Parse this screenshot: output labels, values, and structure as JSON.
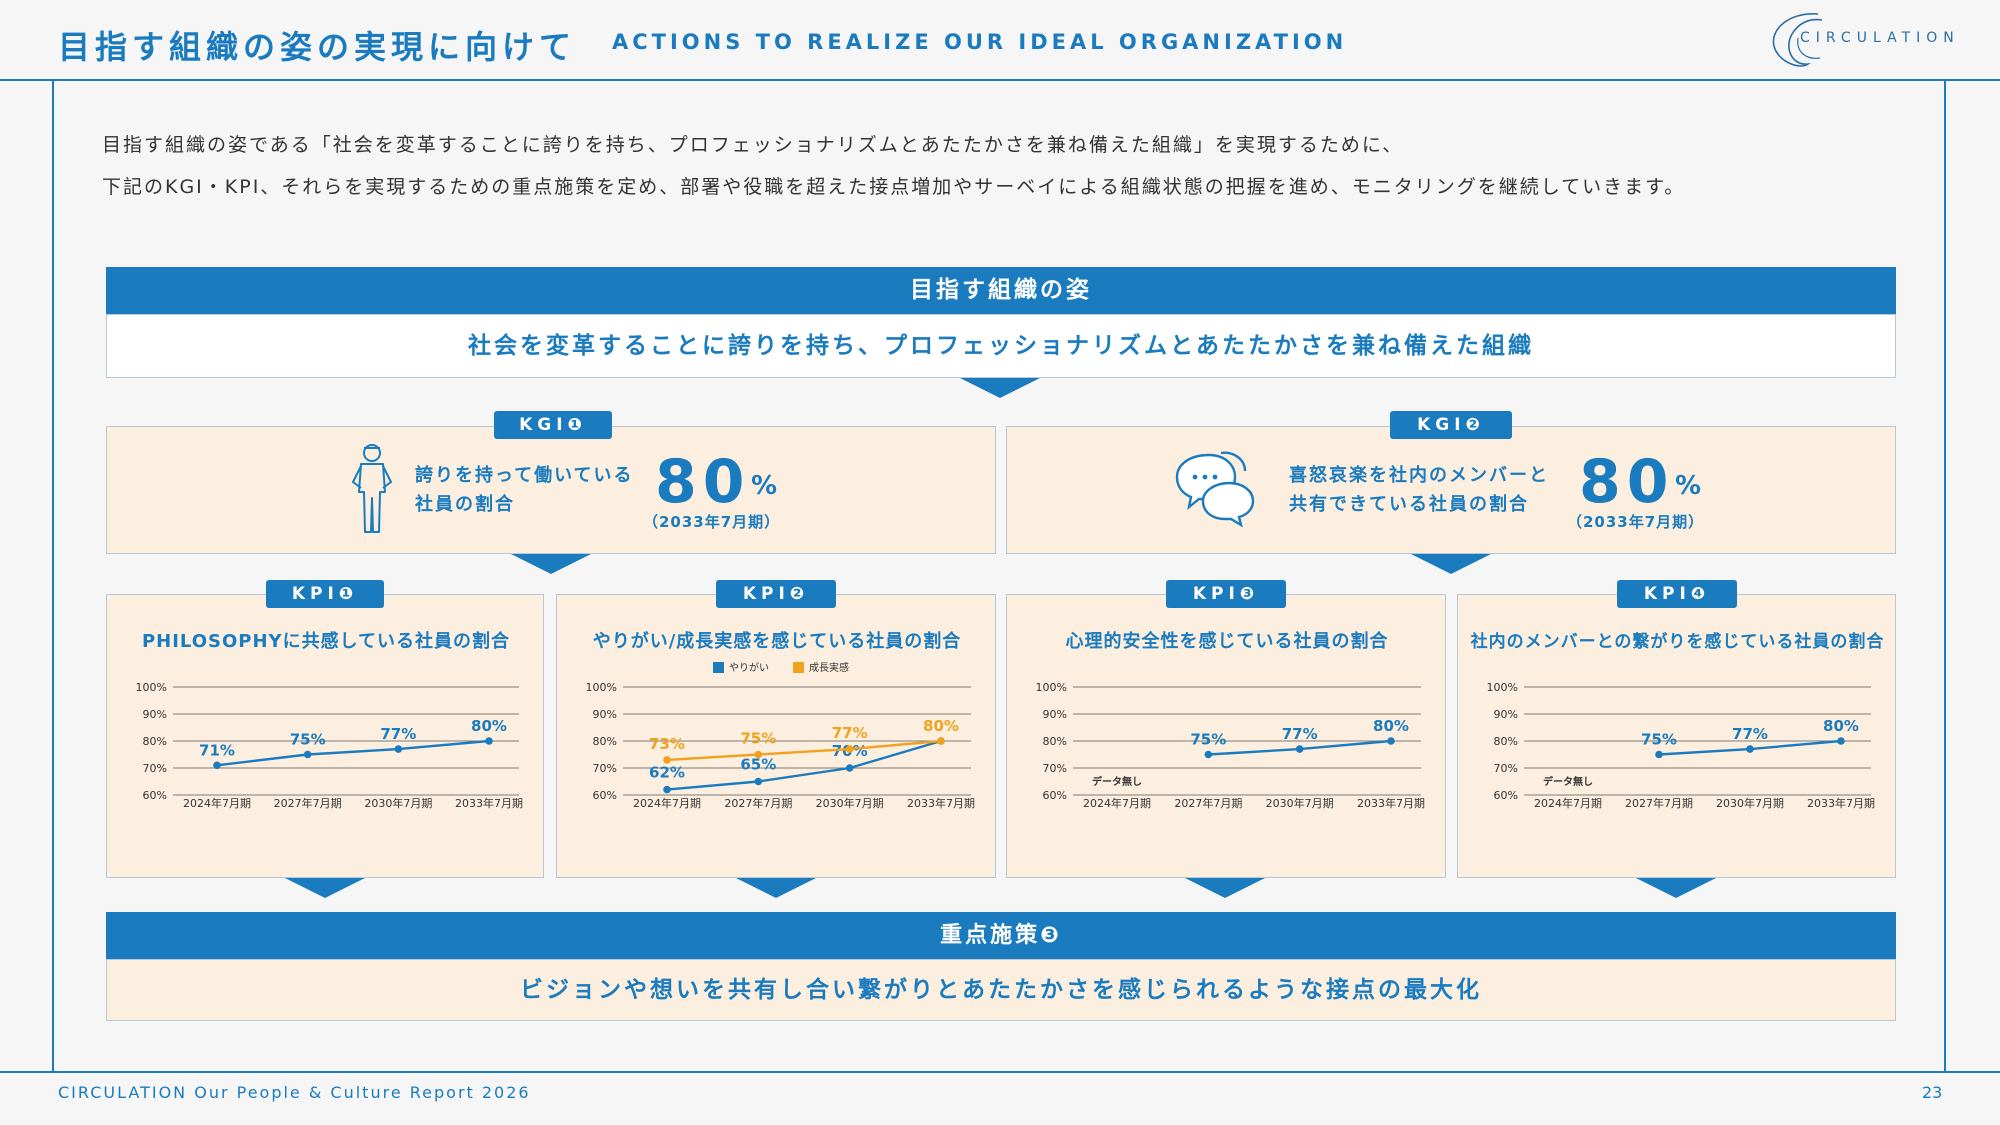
{
  "header": {
    "title_jp": "目指す組織の姿の実現に向けて",
    "title_en": "ACTIONS TO REALIZE OUR IDEAL ORGANIZATION",
    "logo_text": "CIRCULATION"
  },
  "intro": {
    "line1": "目指す組織の姿である「社会を変革することに誇りを持ち、プロフェッショナリズムとあたたかさを兼ね備えた組織」を実現するために、",
    "line2": "下記のKGI・KPI、それらを実現するための重点施策を定め、部署や役職を超えた接点増加やサーベイによる組織状態の把握を進め、モニタリングを継続していきます。"
  },
  "ideal": {
    "heading": "目指す組織の姿",
    "text": "社会を変革することに誇りを持ち、プロフェッショナリズムとあたたかさを兼ね備えた組織"
  },
  "kgis": [
    {
      "tag": "KGI❶",
      "line1": "誇りを持って働いている",
      "line2": "社員の割合",
      "value": "80",
      "unit": "%",
      "period": "（2033年7月期）",
      "icon": "person-icon"
    },
    {
      "tag": "KGI❷",
      "line1": "喜怒哀楽を社内のメンバーと",
      "line2": "共有できている社員の割合",
      "value": "80",
      "unit": "%",
      "period": "（2033年7月期）",
      "icon": "chat-bubbles-icon"
    }
  ],
  "kpis": [
    {
      "tag": "KPI❶",
      "title": "PHILOSOPHYに共感している社員の割合"
    },
    {
      "tag": "KPI❷",
      "title": "やりがい/成長実感を感じている社員の割合"
    },
    {
      "tag": "KPI❸",
      "title": "心理的安全性を感じている社員の割合"
    },
    {
      "tag": "KPI❹",
      "title": "社内のメンバーとの繋がりを感じている社員の割合"
    }
  ],
  "chart_data": [
    {
      "type": "line",
      "title": "PHILOSOPHYに共感している社員の割合",
      "categories": [
        "2024年7月期",
        "2027年7月期",
        "2030年7月期",
        "2033年7月期"
      ],
      "y_ticks": [
        "100%",
        "90%",
        "80%",
        "70%",
        "60%"
      ],
      "ylim": [
        60,
        100
      ],
      "series": [
        {
          "values": [
            71,
            75,
            77,
            80
          ],
          "labels": [
            "71%",
            "75%",
            "77%",
            "80%"
          ],
          "color": "#1a7bbf"
        }
      ],
      "note": ""
    },
    {
      "type": "line",
      "title": "やりがい/成長実感を感じている社員の割合",
      "categories": [
        "2024年7月期",
        "2027年7月期",
        "2030年7月期",
        "2033年7月期"
      ],
      "y_ticks": [
        "100%",
        "90%",
        "80%",
        "70%",
        "60%"
      ],
      "ylim": [
        60,
        100
      ],
      "legend_position": "top",
      "series": [
        {
          "name": "やりがい",
          "values": [
            62,
            65,
            70,
            80
          ],
          "labels": [
            "62%",
            "65%",
            "70%",
            "80%"
          ],
          "color": "#1a7bbf"
        },
        {
          "name": "成長実感",
          "values": [
            73,
            75,
            77,
            80
          ],
          "labels": [
            "73%",
            "75%",
            "77%",
            "80%"
          ],
          "color": "#f0a21e"
        }
      ],
      "note": ""
    },
    {
      "type": "line",
      "title": "心理的安全性を感じている社員の割合",
      "categories": [
        "2024年7月期",
        "2027年7月期",
        "2030年7月期",
        "2033年7月期"
      ],
      "y_ticks": [
        "100%",
        "90%",
        "80%",
        "70%",
        "60%"
      ],
      "ylim": [
        60,
        100
      ],
      "series": [
        {
          "values": [
            null,
            75,
            77,
            80
          ],
          "labels": [
            "",
            "75%",
            "77%",
            "80%"
          ],
          "color": "#1a7bbf"
        }
      ],
      "note": "データ無し"
    },
    {
      "type": "line",
      "title": "社内のメンバーとの繋がりを感じている社員の割合",
      "categories": [
        "2024年7月期",
        "2027年7月期",
        "2030年7月期",
        "2033年7月期"
      ],
      "y_ticks": [
        "100%",
        "90%",
        "80%",
        "70%",
        "60%"
      ],
      "ylim": [
        60,
        100
      ],
      "series": [
        {
          "values": [
            null,
            75,
            77,
            80
          ],
          "labels": [
            "",
            "75%",
            "77%",
            "80%"
          ],
          "color": "#1a7bbf"
        }
      ],
      "note": "データ無し"
    }
  ],
  "focus": {
    "heading": "重点施策❸",
    "text": "ビジョンや想いを共有し合い繋がりとあたたかさを感じられるような接点の最大化"
  },
  "footer": {
    "left": "CIRCULATION Our People & Culture Report 2026",
    "page": "23"
  },
  "colors": {
    "accent": "#1a7bbf",
    "orange": "#f0a21e",
    "cream": "#fcefe0"
  }
}
